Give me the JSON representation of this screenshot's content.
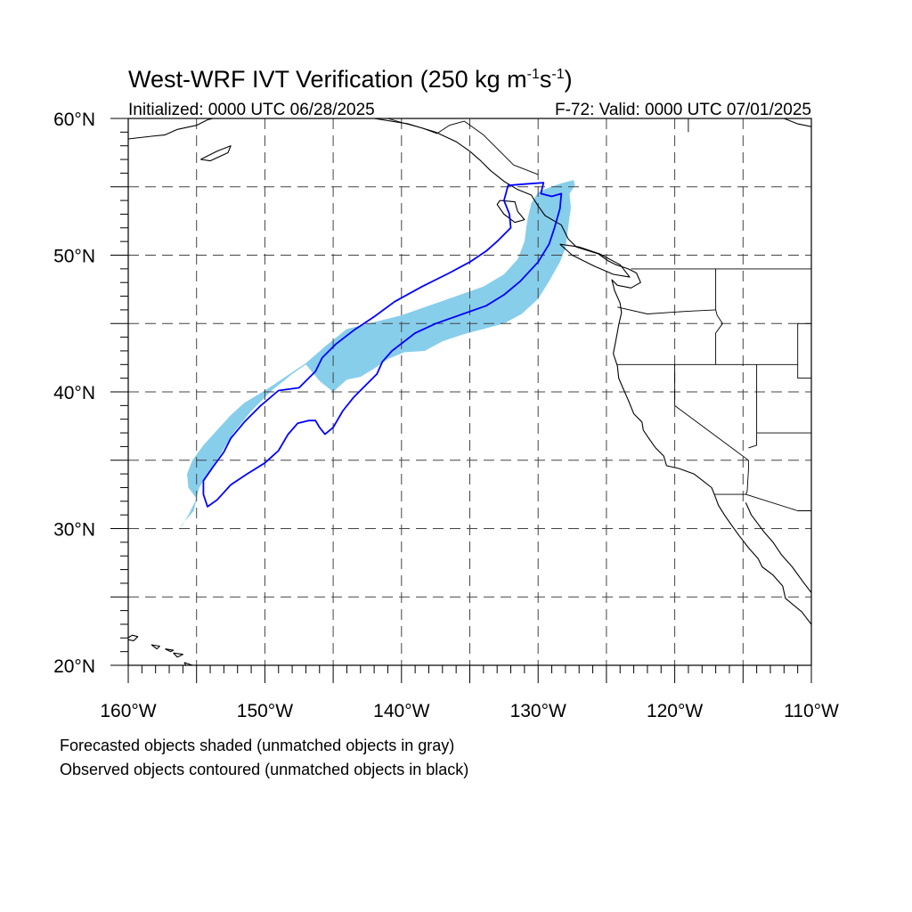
{
  "header": {
    "title_main": "West-WRF IVT Verification (250 kg m",
    "title_exp1": "-1",
    "title_mid": "s",
    "title_exp2": "-1",
    "title_end": ")",
    "init_text": "Initialized: 0000 UTC 06/28/2025",
    "valid_text": "F-72: Valid: 0000 UTC 07/01/2025"
  },
  "map": {
    "lon_range": [
      -160,
      -110
    ],
    "lat_range": [
      20,
      60
    ],
    "lat_labels": [
      "20°N",
      "30°N",
      "40°N",
      "50°N",
      "60°N"
    ],
    "lon_labels": [
      "160°W",
      "150°W",
      "140°W",
      "130°W",
      "120°W",
      "110°W"
    ],
    "grid_lats": [
      25,
      30,
      35,
      40,
      45,
      50,
      55
    ],
    "grid_lons": [
      -155,
      -150,
      -145,
      -140,
      -135,
      -130,
      -125,
      -120,
      -115
    ],
    "forecast_fill_color": "#87ceeb",
    "observed_contour_color": "#0000ff",
    "forecast_object": [
      [
        -156.3,
        30.0
      ],
      [
        -155.8,
        30.6
      ],
      [
        -155.2,
        31.3
      ],
      [
        -155.0,
        32.2
      ],
      [
        -155.6,
        33.0
      ],
      [
        -155.7,
        34.0
      ],
      [
        -155.3,
        35.0
      ],
      [
        -154.5,
        36.1
      ],
      [
        -153.5,
        37.2
      ],
      [
        -152.5,
        38.3
      ],
      [
        -151.5,
        39.2
      ],
      [
        -150.0,
        40.1
      ],
      [
        -148.5,
        41.1
      ],
      [
        -147.0,
        42.1
      ],
      [
        -145.5,
        43.4
      ],
      [
        -144.0,
        44.6
      ],
      [
        -142.0,
        45.1
      ],
      [
        -140.0,
        45.6
      ],
      [
        -138.0,
        46.3
      ],
      [
        -136.0,
        47.0
      ],
      [
        -134.0,
        47.7
      ],
      [
        -132.5,
        48.6
      ],
      [
        -131.5,
        49.7
      ],
      [
        -131.0,
        51.0
      ],
      [
        -130.8,
        52.5
      ],
      [
        -130.5,
        53.8
      ],
      [
        -130.0,
        54.6
      ],
      [
        -129.3,
        54.9
      ],
      [
        -128.5,
        55.2
      ],
      [
        -127.4,
        55.5
      ],
      [
        -127.3,
        55.1
      ],
      [
        -127.7,
        54.5
      ],
      [
        -127.6,
        53.5
      ],
      [
        -127.8,
        52.0
      ],
      [
        -128.0,
        50.5
      ],
      [
        -128.4,
        49.5
      ],
      [
        -129.2,
        48.1
      ],
      [
        -130.0,
        46.8
      ],
      [
        -131.2,
        45.7
      ],
      [
        -132.5,
        45.0
      ],
      [
        -134.0,
        44.6
      ],
      [
        -135.5,
        44.2
      ],
      [
        -137.0,
        43.7
      ],
      [
        -138.3,
        43.0
      ],
      [
        -139.8,
        42.9
      ],
      [
        -141.0,
        42.4
      ],
      [
        -142.0,
        41.7
      ],
      [
        -143.0,
        41.1
      ],
      [
        -144.0,
        40.9
      ],
      [
        -145.0,
        40.0
      ],
      [
        -146.0,
        40.8
      ],
      [
        -147.0,
        42.0
      ],
      [
        -148.0,
        41.3
      ],
      [
        -149.5,
        40.1
      ],
      [
        -151.0,
        38.6
      ],
      [
        -152.3,
        37.0
      ],
      [
        -153.2,
        35.5
      ],
      [
        -154.0,
        34.3
      ],
      [
        -154.8,
        33.0
      ],
      [
        -155.1,
        32.0
      ],
      [
        -155.6,
        31.0
      ],
      [
        -156.0,
        30.3
      ]
    ],
    "observed_contour": [
      [
        -154.2,
        31.6
      ],
      [
        -154.5,
        32.5
      ],
      [
        -154.5,
        33.5
      ],
      [
        -153.8,
        34.5
      ],
      [
        -153.0,
        35.6
      ],
      [
        -152.5,
        36.6
      ],
      [
        -151.5,
        37.8
      ],
      [
        -150.3,
        39.0
      ],
      [
        -149.0,
        40.1
      ],
      [
        -147.5,
        40.3
      ],
      [
        -146.3,
        41.5
      ],
      [
        -145.8,
        42.5
      ],
      [
        -144.8,
        43.5
      ],
      [
        -143.5,
        44.5
      ],
      [
        -142.0,
        45.5
      ],
      [
        -140.5,
        46.6
      ],
      [
        -138.5,
        47.7
      ],
      [
        -136.5,
        48.7
      ],
      [
        -135.0,
        49.5
      ],
      [
        -133.8,
        50.3
      ],
      [
        -133.0,
        51.0
      ],
      [
        -132.0,
        52.0
      ],
      [
        -132.1,
        53.0
      ],
      [
        -132.5,
        54.0
      ],
      [
        -132.2,
        55.1
      ],
      [
        -131.0,
        55.2
      ],
      [
        -129.6,
        55.3
      ],
      [
        -129.8,
        54.5
      ],
      [
        -129.0,
        54.3
      ],
      [
        -128.3,
        54.5
      ],
      [
        -128.4,
        53.4
      ],
      [
        -128.8,
        52.0
      ],
      [
        -129.2,
        50.8
      ],
      [
        -130.0,
        49.5
      ],
      [
        -131.3,
        48.1
      ],
      [
        -132.5,
        47.1
      ],
      [
        -133.8,
        46.3
      ],
      [
        -135.5,
        45.7
      ],
      [
        -137.5,
        45.0
      ],
      [
        -139.0,
        44.3
      ],
      [
        -140.7,
        43.0
      ],
      [
        -141.4,
        42.2
      ],
      [
        -141.8,
        41.3
      ],
      [
        -142.6,
        40.5
      ],
      [
        -143.5,
        39.6
      ],
      [
        -144.3,
        38.6
      ],
      [
        -145.0,
        37.4
      ],
      [
        -145.6,
        36.9
      ],
      [
        -146.0,
        37.4
      ],
      [
        -146.3,
        37.9
      ],
      [
        -146.8,
        37.9
      ],
      [
        -147.6,
        37.7
      ],
      [
        -148.3,
        36.9
      ],
      [
        -149.0,
        35.7
      ],
      [
        -150.0,
        34.8
      ],
      [
        -151.3,
        34.0
      ],
      [
        -152.5,
        33.2
      ],
      [
        -153.5,
        32.1
      ]
    ],
    "coastline_main": [
      [
        -142,
        60
      ],
      [
        -139.5,
        59.6
      ],
      [
        -137.5,
        59.0
      ],
      [
        -136.0,
        58.3
      ],
      [
        -135.0,
        57.6
      ],
      [
        -134.2,
        56.9
      ],
      [
        -133.5,
        56.2
      ],
      [
        -132.5,
        55.4
      ],
      [
        -131.5,
        54.8
      ],
      [
        -130.5,
        54.4
      ],
      [
        -130.0,
        53.6
      ],
      [
        -129.5,
        52.9
      ],
      [
        -128.3,
        52.2
      ],
      [
        -127.8,
        51.2
      ],
      [
        -127.2,
        50.6
      ],
      [
        -125.6,
        50.1
      ],
      [
        -124.9,
        49.6
      ],
      [
        -124.3,
        49.3
      ],
      [
        -123.4,
        49.0
      ],
      [
        -122.8,
        48.7
      ],
      [
        -122.5,
        48.0
      ],
      [
        -123.2,
        47.6
      ],
      [
        -124.2,
        47.8
      ],
      [
        -124.6,
        48.2
      ],
      [
        -124.4,
        47.4
      ],
      [
        -124.0,
        46.5
      ],
      [
        -123.9,
        45.8
      ],
      [
        -124.1,
        44.9
      ],
      [
        -124.3,
        43.8
      ],
      [
        -124.5,
        42.8
      ],
      [
        -124.2,
        41.9
      ],
      [
        -124.1,
        41.0
      ],
      [
        -123.8,
        40.3
      ],
      [
        -123.4,
        39.4
      ],
      [
        -123.0,
        38.4
      ],
      [
        -122.4,
        37.8
      ],
      [
        -122.3,
        37.2
      ],
      [
        -121.9,
        36.6
      ],
      [
        -121.4,
        35.9
      ],
      [
        -120.8,
        35.3
      ],
      [
        -120.6,
        34.6
      ],
      [
        -119.7,
        34.4
      ],
      [
        -118.6,
        34.0
      ],
      [
        -118.2,
        33.7
      ],
      [
        -117.3,
        33.0
      ],
      [
        -117.1,
        32.5
      ],
      [
        -116.8,
        31.7
      ],
      [
        -116.3,
        30.9
      ],
      [
        -115.8,
        30.2
      ],
      [
        -115.3,
        29.5
      ],
      [
        -114.6,
        28.6
      ],
      [
        -113.9,
        27.8
      ],
      [
        -113.6,
        27.2
      ],
      [
        -112.8,
        26.6
      ],
      [
        -112.1,
        25.8
      ],
      [
        -111.9,
        24.9
      ],
      [
        -110.7,
        23.9
      ],
      [
        -110.0,
        23.0
      ]
    ],
    "gulf_coast": [
      [
        -114.8,
        31.9
      ],
      [
        -114.4,
        31.0
      ],
      [
        -113.5,
        29.8
      ],
      [
        -112.8,
        29.0
      ],
      [
        -112.2,
        28.1
      ],
      [
        -111.4,
        27.2
      ],
      [
        -110.6,
        26.1
      ],
      [
        -110.0,
        25.3
      ]
    ],
    "alaska_coast": [
      [
        -160,
        58.5
      ],
      [
        -158.3,
        58.7
      ],
      [
        -157.3,
        58.8
      ],
      [
        -156.4,
        59.2
      ],
      [
        -155.0,
        59.5
      ],
      [
        -154.2,
        59.9
      ],
      [
        -153.8,
        60.0
      ]
    ],
    "kodiak": [
      [
        -154.7,
        57.0
      ],
      [
        -153.5,
        57.6
      ],
      [
        -152.5,
        58.0
      ],
      [
        -152.7,
        57.5
      ],
      [
        -154.0,
        56.9
      ],
      [
        -154.7,
        57.0
      ]
    ],
    "canada_coast_top": [
      [
        -110.0,
        59.4
      ],
      [
        -111.0,
        59.6
      ],
      [
        -112.0,
        60.0
      ]
    ],
    "haida_gwaii": [
      [
        -132.8,
        54.0
      ],
      [
        -131.7,
        53.9
      ],
      [
        -131.5,
        53.2
      ],
      [
        -131.0,
        52.6
      ],
      [
        -131.7,
        52.4
      ],
      [
        -132.5,
        53.0
      ],
      [
        -133.0,
        53.7
      ],
      [
        -132.8,
        54.0
      ]
    ],
    "vancouver_island": [
      [
        -128.4,
        50.8
      ],
      [
        -127.0,
        50.6
      ],
      [
        -125.5,
        50.1
      ],
      [
        -124.0,
        49.3
      ],
      [
        -123.3,
        48.4
      ],
      [
        -124.5,
        48.6
      ],
      [
        -125.9,
        49.2
      ],
      [
        -127.5,
        50.0
      ],
      [
        -128.4,
        50.8
      ]
    ],
    "hawaii": [
      [
        [
          -160.2,
          21.9
        ],
        [
          -159.7,
          22.2
        ],
        [
          -159.3,
          22.1
        ],
        [
          -159.6,
          21.8
        ],
        [
          -160.2,
          21.9
        ]
      ],
      [
        [
          -158.3,
          21.5
        ],
        [
          -157.7,
          21.4
        ],
        [
          -157.9,
          21.2
        ],
        [
          -158.3,
          21.5
        ]
      ],
      [
        [
          -157.3,
          21.2
        ],
        [
          -156.7,
          21.1
        ],
        [
          -156.9,
          21.0
        ],
        [
          -157.3,
          21.2
        ]
      ],
      [
        [
          -156.7,
          20.9
        ],
        [
          -156.0,
          20.8
        ],
        [
          -156.4,
          20.6
        ],
        [
          -156.7,
          20.9
        ]
      ],
      [
        [
          -155.9,
          20.2
        ],
        [
          -155.0,
          19.9
        ],
        [
          -155.5,
          19.5
        ],
        [
          -155.9,
          20.2
        ]
      ]
    ],
    "borders": [
      [
        [
          -141,
          60
        ],
        [
          -140.0,
          59.7
        ],
        [
          -138.5,
          59.3
        ],
        [
          -137.4,
          58.9
        ],
        [
          -136.5,
          59.5
        ],
        [
          -135.4,
          59.8
        ],
        [
          -134.0,
          58.8
        ],
        [
          -133.0,
          57.8
        ],
        [
          -131.8,
          56.6
        ],
        [
          -130.0,
          55.9
        ]
      ],
      [
        [
          -123.2,
          49.0
        ],
        [
          -110.0,
          49.0
        ]
      ],
      [
        [
          -117.0,
          49.0
        ],
        [
          -117.0,
          46.0
        ],
        [
          -116.9,
          45.6
        ],
        [
          -116.5,
          45.0
        ]
      ],
      [
        [
          -124.2,
          46.2
        ],
        [
          -122.0,
          45.7
        ],
        [
          -119.0,
          45.9
        ],
        [
          -117.0,
          46.0
        ]
      ],
      [
        [
          -116.5,
          45.0
        ],
        [
          -117.0,
          44.3
        ],
        [
          -117.0,
          42.0
        ]
      ],
      [
        [
          -124.2,
          42.0
        ],
        [
          -111.0,
          42.0
        ]
      ],
      [
        [
          -120.0,
          42.0
        ],
        [
          -120.0,
          39.0
        ],
        [
          -114.6,
          35.0
        ],
        [
          -114.6,
          34.3
        ],
        [
          -114.7,
          32.7
        ]
      ],
      [
        [
          -114.0,
          42.0
        ],
        [
          -114.0,
          37.0
        ]
      ],
      [
        [
          -114.0,
          37.0
        ],
        [
          -114.0,
          36.1
        ],
        [
          -114.6,
          35.9
        ]
      ],
      [
        [
          -114.0,
          37.0
        ],
        [
          -110.0,
          37.0
        ]
      ],
      [
        [
          -111.0,
          42.0
        ],
        [
          -111.0,
          41.0
        ],
        [
          -110.0,
          41.0
        ]
      ],
      [
        [
          -111.0,
          45.0
        ],
        [
          -111.0,
          42.0
        ]
      ],
      [
        [
          -111.0,
          45.0
        ],
        [
          -110.0,
          45.0
        ]
      ],
      [
        [
          -117.1,
          32.5
        ],
        [
          -114.8,
          32.5
        ],
        [
          -111.0,
          31.3
        ],
        [
          -110.0,
          31.3
        ]
      ],
      [
        [
          -114.8,
          32.5
        ],
        [
          -114.7,
          32.7
        ]
      ],
      [
        [
          -119.0,
          60.0
        ],
        [
          -119.0,
          59.0
        ]
      ]
    ]
  },
  "legend": {
    "line1": "Forecasted objects shaded (unmatched objects in gray)",
    "line2": "Observed objects contoured (unmatched objects in black)"
  }
}
